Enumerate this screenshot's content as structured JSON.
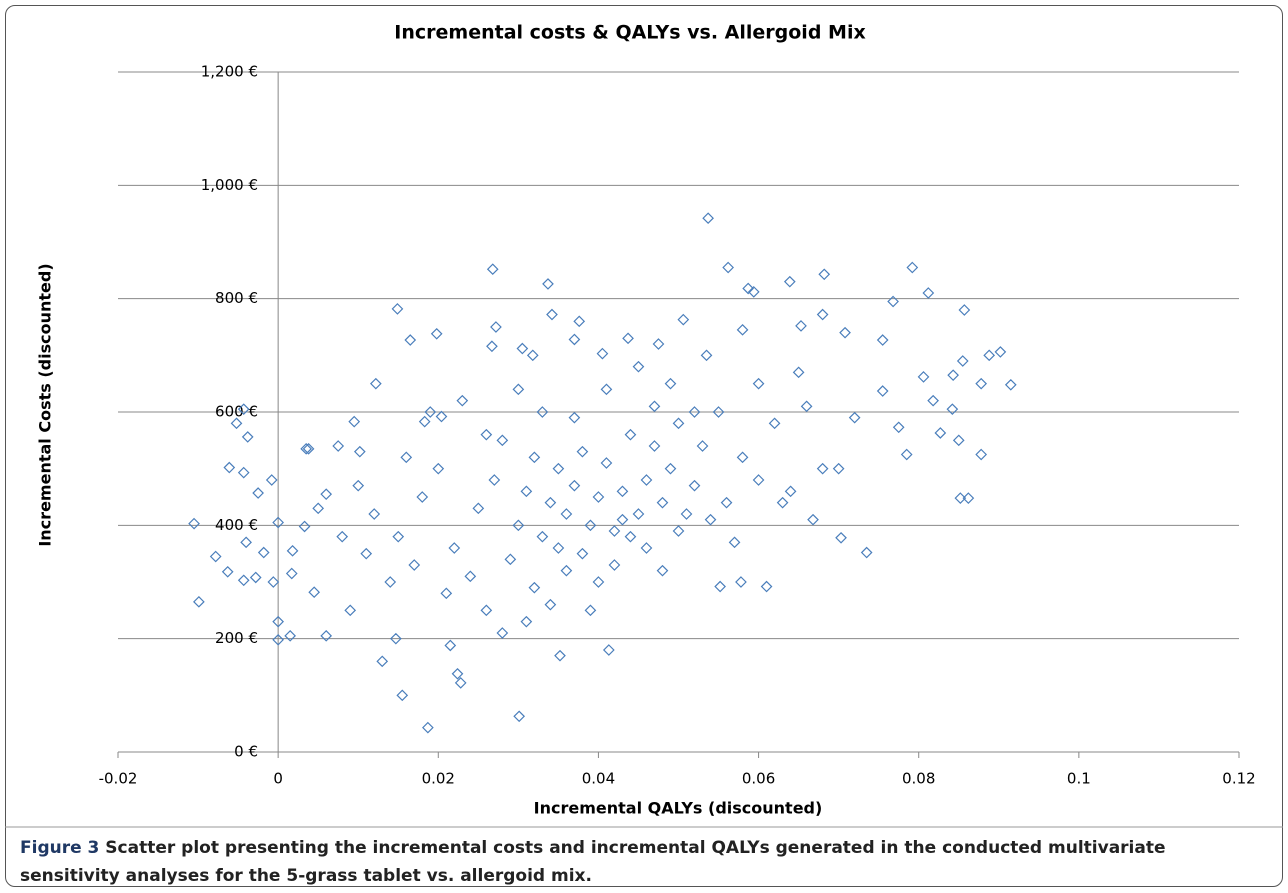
{
  "chart_data": {
    "type": "scatter",
    "title": "Incremental costs & QALYs vs. Allergoid Mix",
    "x_label": "Incremental QALYs (discounted)",
    "y_label": "Incremental Costs (discounted)",
    "caption_label": "Figure 3",
    "caption": "Scatter plot presenting the incremental costs and incremental QALYs generated in the conducted multivariate sensitivity analyses for the 5-grass tablet vs. allergoid mix.",
    "color": "#4a7ebb",
    "grid": true,
    "xlim": [
      -0.02,
      0.12
    ],
    "xticks": [
      -0.02,
      0,
      0.02,
      0.04,
      0.06,
      0.08,
      0.1,
      0.12
    ],
    "ylim": [
      0,
      1200
    ],
    "yticks": [
      {
        "value": 0,
        "label": "0 €"
      },
      {
        "value": 200,
        "label": "200 €"
      },
      {
        "value": 400,
        "label": "400 €"
      },
      {
        "value": 600,
        "label": "600 €"
      },
      {
        "value": 800,
        "label": "800 €"
      },
      {
        "value": 1000,
        "label": "1,000 €"
      },
      {
        "value": 1200,
        "label": "1,200 €"
      }
    ],
    "x": [
      -0.0105,
      -0.0099,
      -0.0078,
      -0.0063,
      -0.0061,
      -0.0052,
      -0.0043,
      -0.0038,
      -0.0043,
      -0.004,
      -0.0043,
      -0.0028,
      -0.0025,
      -0.0018,
      -0.0008,
      -0.0006,
      0.0,
      0.0,
      0.0,
      0.0018,
      0.0017,
      0.0015,
      0.0035,
      0.0038,
      0.0033,
      0.0045,
      0.006,
      0.006,
      0.0075,
      0.0095,
      0.0102,
      0.0122,
      0.013,
      0.0147,
      0.0149,
      0.0155,
      0.0165,
      0.0183,
      0.0187,
      0.0198,
      0.0204,
      0.0215,
      0.0224,
      0.0228,
      0.0268,
      0.0267,
      0.0272,
      0.0301,
      0.0305,
      0.0318,
      0.0337,
      0.0342,
      0.0352,
      0.037,
      0.0376,
      0.0405,
      0.0413,
      0.0437,
      0.0475,
      0.0506,
      0.0537,
      0.0535,
      0.0552,
      0.0562,
      0.0578,
      0.058,
      0.0587,
      0.0594,
      0.061,
      0.0639,
      0.0653,
      0.0668,
      0.0682,
      0.068,
      0.0703,
      0.0708,
      0.0755,
      0.0735,
      0.0755,
      0.0768,
      0.0775,
      0.0785,
      0.0792,
      0.0806,
      0.0812,
      0.0818,
      0.0827,
      0.0842,
      0.0843,
      0.085,
      0.0852,
      0.0862,
      0.0857,
      0.0855,
      0.0878,
      0.0878,
      0.0888,
      0.0902,
      0.0915,
      0.012,
      0.015,
      0.018,
      0.02,
      0.022,
      0.025,
      0.027,
      0.028,
      0.03,
      0.031,
      0.032,
      0.033,
      0.034,
      0.035,
      0.036,
      0.037,
      0.038,
      0.039,
      0.04,
      0.041,
      0.042,
      0.043,
      0.044,
      0.045,
      0.046,
      0.047,
      0.048,
      0.049,
      0.05,
      0.051,
      0.052,
      0.053,
      0.055,
      0.056,
      0.058,
      0.06,
      0.062,
      0.064,
      0.066,
      0.07,
      0.014,
      0.017,
      0.021,
      0.024,
      0.026,
      0.029,
      0.032,
      0.034,
      0.036,
      0.038,
      0.04,
      0.042,
      0.044,
      0.046,
      0.048,
      0.05,
      0.054,
      0.057,
      0.063,
      0.068,
      0.011,
      0.016,
      0.019,
      0.023,
      0.026,
      0.03,
      0.033,
      0.037,
      0.041,
      0.045,
      0.049,
      0.052,
      0.06,
      0.065,
      0.072,
      0.008,
      0.01,
      0.009,
      0.005,
      0.028,
      0.031,
      0.039,
      0.043,
      0.047,
      0.035
    ],
    "values": [
      403,
      265,
      345,
      318,
      502,
      580,
      605,
      556,
      493,
      370,
      303,
      308,
      457,
      352,
      480,
      300,
      230,
      405,
      198,
      355,
      315,
      205,
      535,
      535,
      398,
      282,
      455,
      205,
      540,
      583,
      530,
      650,
      160,
      200,
      782,
      100,
      727,
      583,
      43,
      738,
      592,
      188,
      138,
      122,
      852,
      716,
      750,
      63,
      712,
      700,
      826,
      772,
      170,
      728,
      760,
      703,
      180,
      730,
      720,
      763,
      942,
      700,
      292,
      855,
      300,
      745,
      818,
      812,
      292,
      830,
      752,
      410,
      843,
      772,
      378,
      740,
      637,
      352,
      727,
      795,
      573,
      525,
      855,
      662,
      810,
      620,
      563,
      605,
      665,
      550,
      448,
      448,
      780,
      690,
      650,
      525,
      700,
      706,
      648,
      420,
      380,
      450,
      500,
      360,
      430,
      480,
      550,
      400,
      460,
      520,
      380,
      440,
      500,
      420,
      470,
      530,
      400,
      450,
      510,
      390,
      460,
      560,
      420,
      480,
      610,
      440,
      500,
      580,
      420,
      470,
      540,
      600,
      440,
      520,
      480,
      580,
      460,
      610,
      500,
      300,
      330,
      280,
      310,
      250,
      340,
      290,
      260,
      320,
      350,
      300,
      330,
      380,
      360,
      320,
      390,
      410,
      370,
      440,
      500,
      350,
      520,
      600,
      620,
      560,
      640,
      600,
      590,
      640,
      680,
      650,
      600,
      650,
      670,
      590,
      380,
      470,
      250,
      430,
      210,
      230,
      250,
      410,
      540,
      360
    ]
  }
}
